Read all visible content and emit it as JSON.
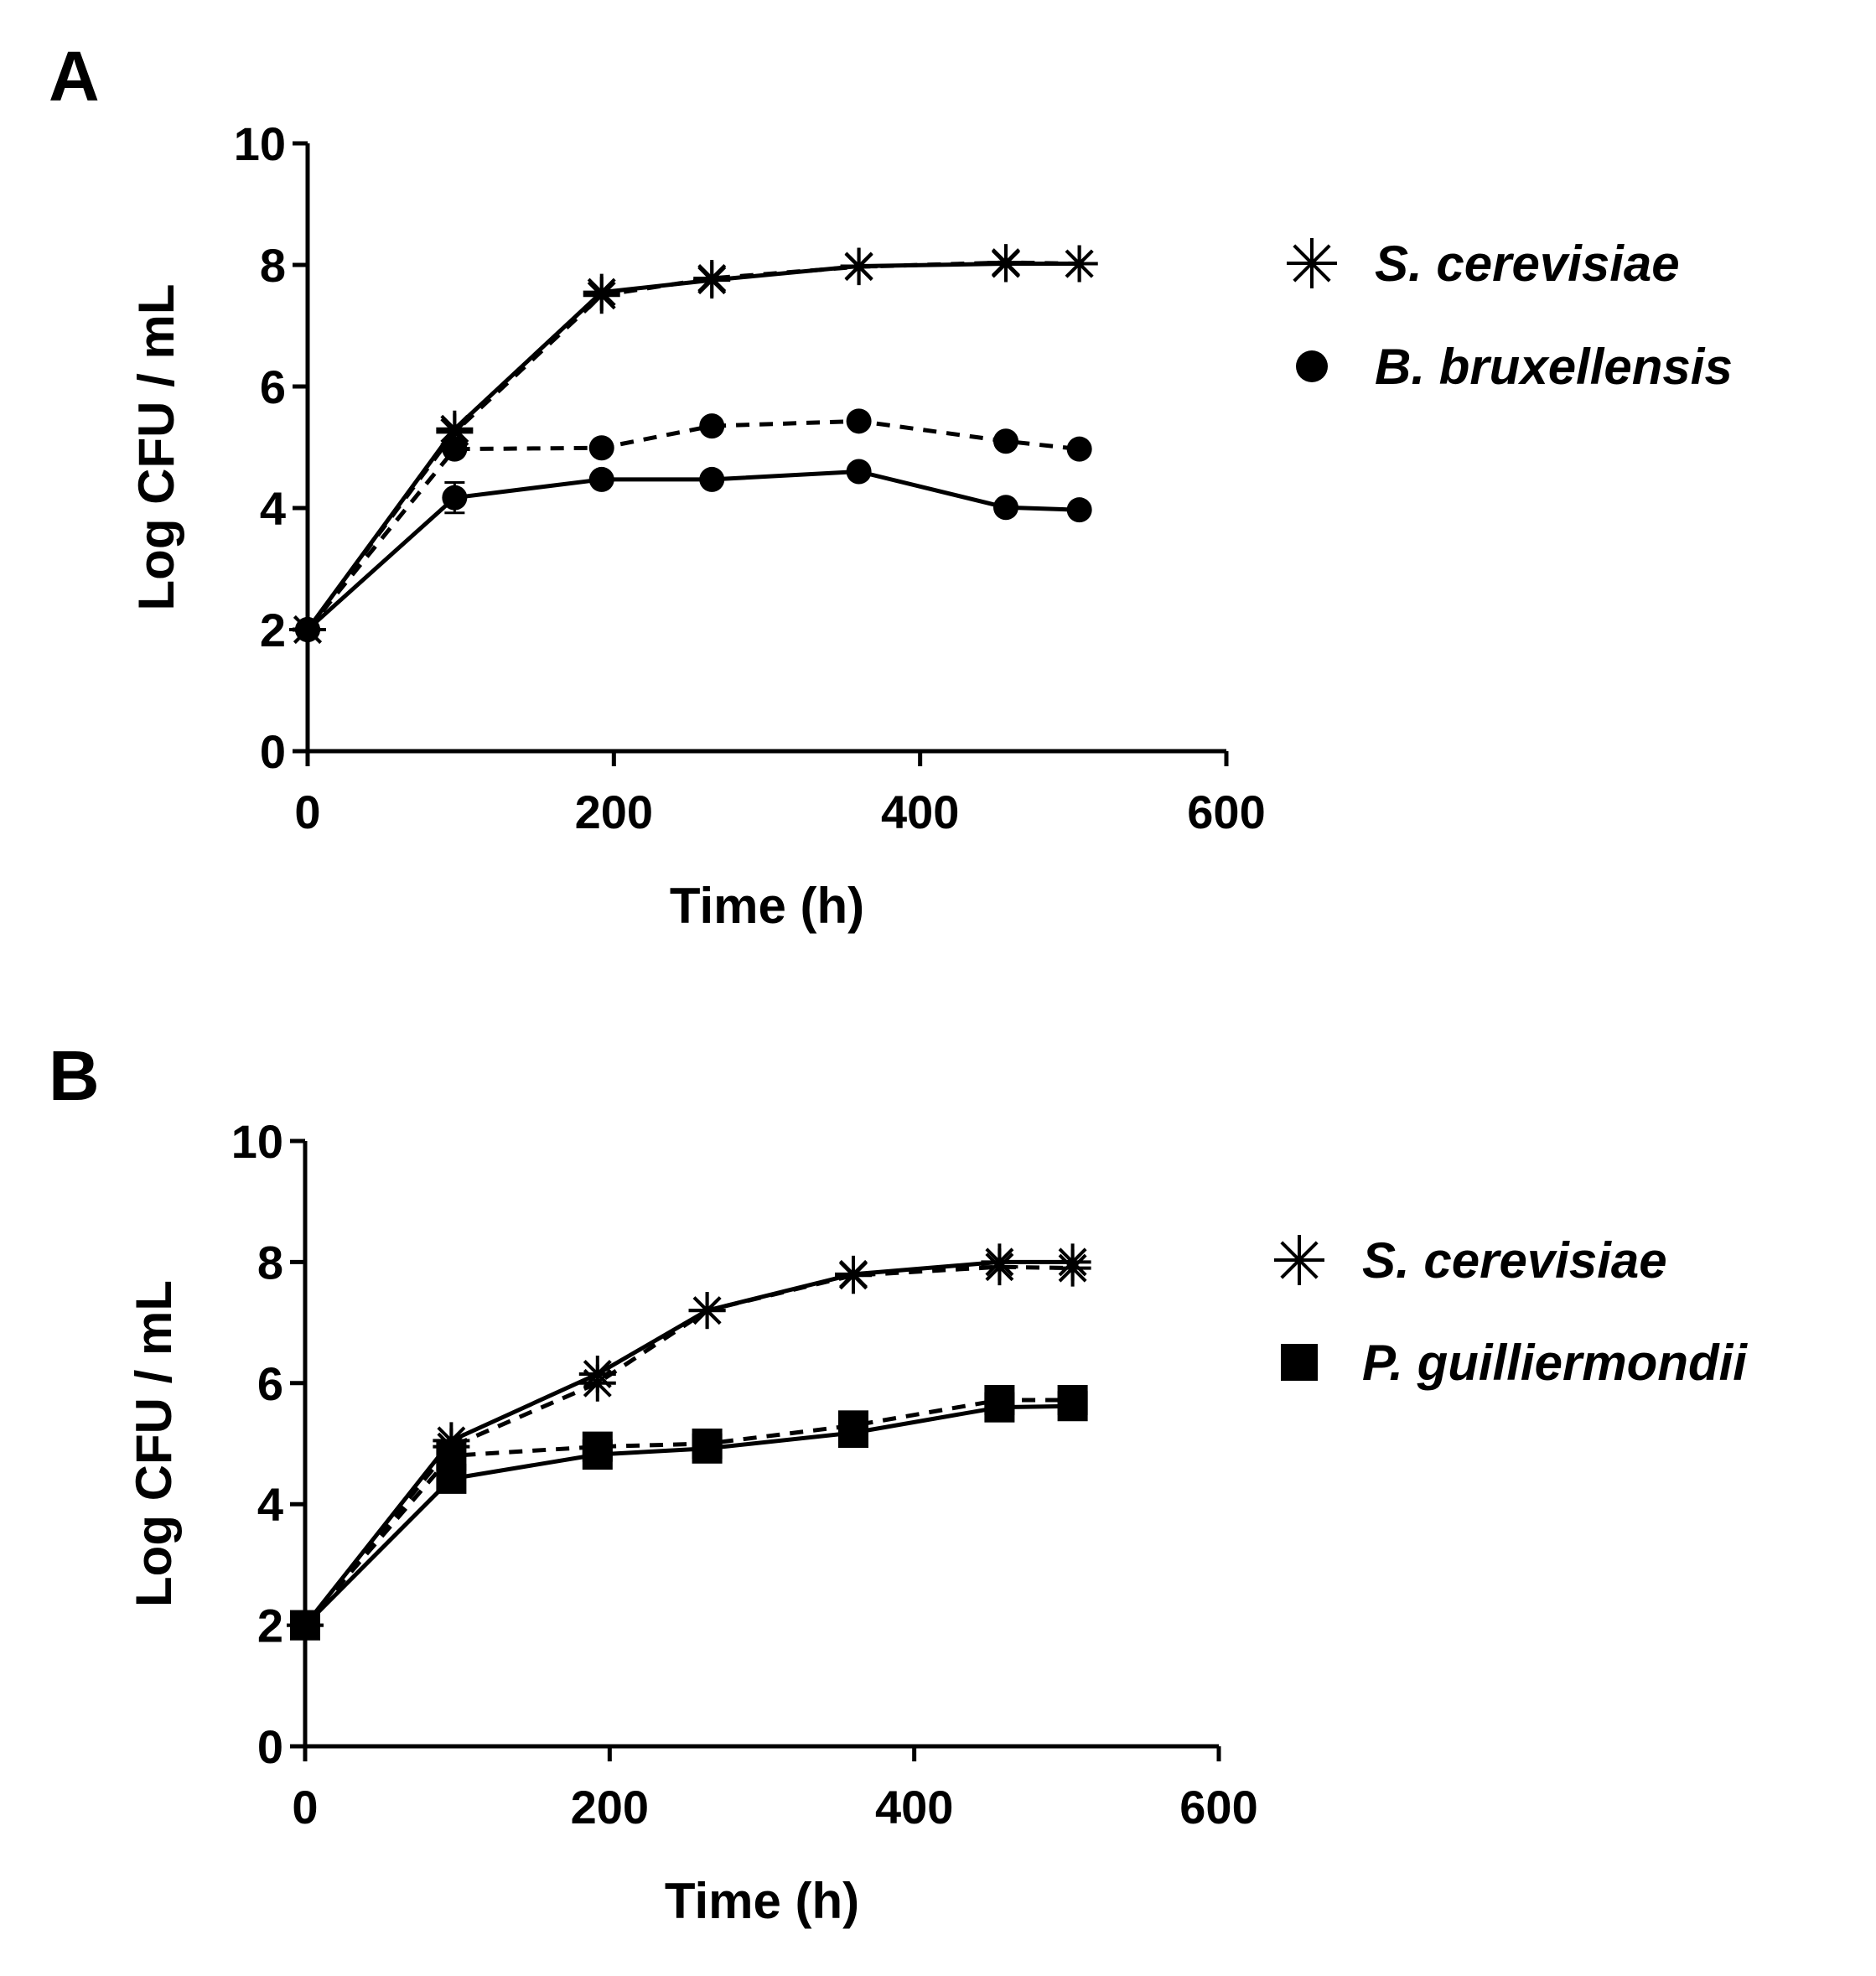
{
  "chart_data": [
    {
      "type": "line",
      "panel_label": "A",
      "xlabel": "Time (h)",
      "ylabel": "Log CFU / mL",
      "xlim": [
        0,
        600
      ],
      "ylim": [
        0,
        10
      ],
      "xticks": [
        "0",
        "200",
        "400",
        "600"
      ],
      "yticks": [
        "0",
        "2",
        "4",
        "6",
        "8",
        "10"
      ],
      "legend_position": "right",
      "legend": [
        {
          "label": "S. cerevisiae",
          "marker": "asterisk"
        },
        {
          "label": "B. bruxellensis",
          "marker": "circle"
        }
      ],
      "series": [
        {
          "name": "S. cerevisiae (solid)",
          "marker": "asterisk",
          "dash": "solid",
          "x": [
            0,
            96,
            192,
            264,
            360,
            456,
            504
          ],
          "y": [
            2.0,
            5.3,
            7.55,
            7.75,
            7.98,
            8.02,
            8.02
          ]
        },
        {
          "name": "S. cerevisiae (dashed)",
          "marker": "asterisk",
          "dash": "dashed",
          "x": [
            0,
            96,
            192,
            264,
            360,
            456,
            504
          ],
          "y": [
            2.0,
            5.25,
            7.5,
            7.78,
            7.97,
            8.04,
            8.02
          ]
        },
        {
          "name": "B. bruxellensis (dashed)",
          "marker": "circle",
          "dash": "dashed",
          "x": [
            0,
            96,
            192,
            264,
            360,
            456,
            504
          ],
          "y": [
            2.0,
            4.97,
            4.99,
            5.35,
            5.43,
            5.1,
            4.97
          ]
        },
        {
          "name": "B. bruxellensis (solid)",
          "marker": "circle",
          "dash": "solid",
          "x": [
            0,
            96,
            192,
            264,
            360,
            456,
            504
          ],
          "y": [
            2.0,
            4.17,
            4.47,
            4.47,
            4.6,
            4.01,
            3.97
          ],
          "error": [
            0,
            0.25,
            0,
            0,
            0,
            0,
            0
          ]
        }
      ]
    },
    {
      "type": "line",
      "panel_label": "B",
      "xlabel": "Time (h)",
      "ylabel": "Log CFU / mL",
      "xlim": [
        0,
        600
      ],
      "ylim": [
        0,
        10
      ],
      "xticks": [
        "0",
        "200",
        "400",
        "600"
      ],
      "yticks": [
        "0",
        "2",
        "4",
        "6",
        "8",
        "10"
      ],
      "legend_position": "right",
      "legend": [
        {
          "label": "S. cerevisiae",
          "marker": "asterisk"
        },
        {
          "label": "P. guilliermondii",
          "marker": "square"
        }
      ],
      "series": [
        {
          "name": "S. cerevisiae (solid)",
          "marker": "asterisk",
          "dash": "solid",
          "x": [
            0,
            96,
            192,
            264,
            360,
            456,
            504
          ],
          "y": [
            2.0,
            5.05,
            6.15,
            7.2,
            7.8,
            8.0,
            8.0
          ]
        },
        {
          "name": "S. cerevisiae (dashed)",
          "marker": "asterisk",
          "dash": "dashed",
          "x": [
            0,
            96,
            192,
            264,
            360,
            456,
            504
          ],
          "y": [
            2.0,
            4.95,
            6.0,
            7.2,
            7.78,
            7.92,
            7.9
          ]
        },
        {
          "name": "P. guilliermondii (dashed)",
          "marker": "square",
          "dash": "dashed",
          "x": [
            0,
            96,
            192,
            264,
            360,
            456,
            504
          ],
          "y": [
            2.0,
            4.8,
            4.95,
            5.0,
            5.3,
            5.72,
            5.72
          ]
        },
        {
          "name": "P. guilliermondii (solid)",
          "marker": "square",
          "dash": "solid",
          "x": [
            0,
            96,
            192,
            264,
            360,
            456,
            504
          ],
          "y": [
            2.0,
            4.42,
            4.82,
            4.92,
            5.18,
            5.6,
            5.62
          ]
        }
      ]
    }
  ]
}
